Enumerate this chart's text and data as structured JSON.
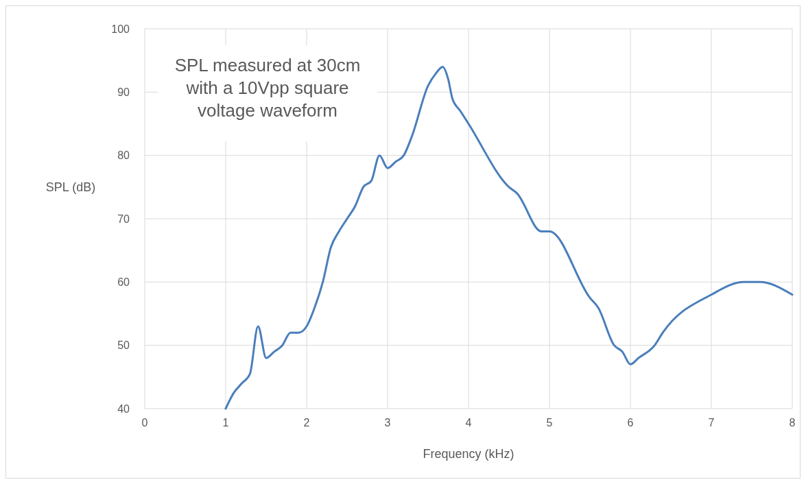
{
  "chart_data": {
    "type": "line",
    "xlabel": "Frequency (kHz)",
    "ylabel": "SPL (dB)",
    "annotations": [
      "SPL measured at 30cm with a 10Vpp square voltage waveform"
    ],
    "xlim": [
      0,
      8
    ],
    "xticks": [
      0,
      1,
      2,
      3,
      4,
      5,
      6,
      7,
      8
    ],
    "ylim": [
      40,
      100
    ],
    "yticks": [
      40,
      50,
      60,
      70,
      80,
      90,
      100
    ],
    "grid": true,
    "marker": "none",
    "line_style": "solid",
    "series": [
      {
        "color": "#4a7ebb",
        "x": [
          1,
          1.1,
          1.2,
          1.3,
          1.4,
          1.5,
          1.6,
          1.7,
          1.8,
          1.9,
          2,
          2.1,
          2.2,
          2.3,
          2.4,
          2.5,
          2.6,
          2.7,
          2.8,
          2.9,
          3,
          3.1,
          3.2,
          3.3,
          3.5,
          3.6,
          3.68,
          3.75,
          3.8,
          3.9,
          4,
          4.5,
          4.6,
          4.9,
          5,
          5.5,
          5.6,
          5.8,
          5.9,
          6,
          6.1,
          6.3,
          6.4,
          7,
          7.4,
          7.6,
          8
        ],
        "values": [
          40,
          42.5,
          44,
          45.5,
          53,
          48,
          49,
          50,
          52,
          52,
          53,
          56,
          60,
          65.5,
          68,
          70,
          72,
          75,
          76,
          80,
          78,
          79,
          80,
          83,
          91,
          93,
          94,
          92,
          89,
          87,
          85,
          75,
          74,
          68,
          68,
          57.5,
          56,
          50,
          49,
          47,
          48,
          50,
          52,
          58,
          60,
          60,
          58
        ]
      }
    ]
  }
}
